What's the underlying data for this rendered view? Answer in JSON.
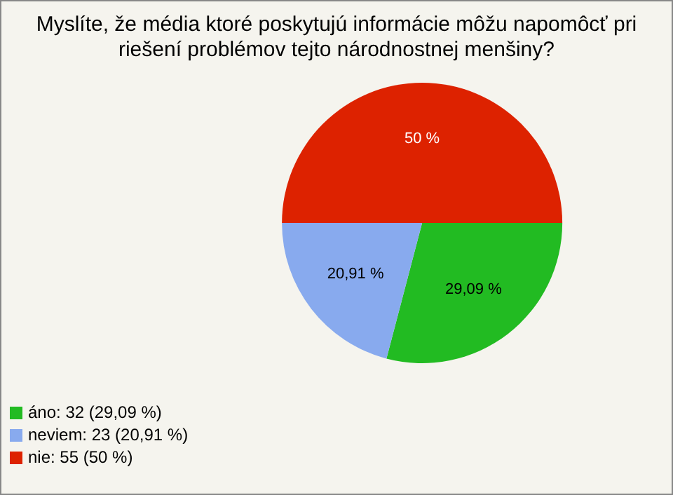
{
  "chart_data": {
    "type": "pie",
    "title": "Myslíte, že média ktoré poskytujú informácie môžu napomôcť pri riešení problémov tejto národnostnej menšiny?",
    "categories": [
      "áno: 32 (29,09 %)",
      "neviem: 23 (20,91 %)",
      "nie: 55 (50 %)"
    ],
    "values": [
      29.09,
      20.91,
      50
    ],
    "colors": [
      "#22bb22",
      "#88aaee",
      "#dd2200"
    ],
    "value_labels": [
      "29,09 %",
      "20,91 %",
      "50 %"
    ],
    "legend": "bottom left"
  }
}
